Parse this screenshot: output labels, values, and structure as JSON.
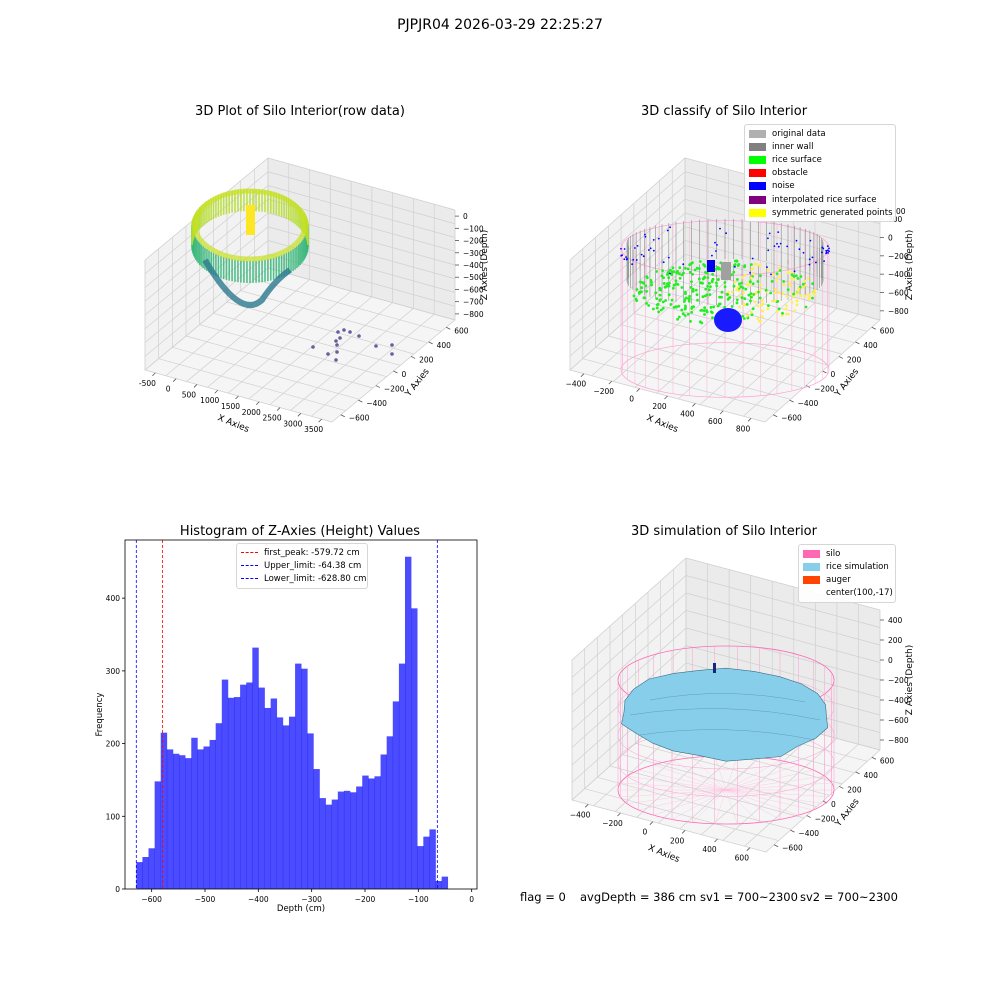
{
  "suptitle": "PJPJR04 2026-03-29 22:25:27",
  "plots": {
    "raw": {
      "title": "3D Plot of Silo Interior(row data)",
      "xlabel": "X Axies",
      "ylabel": "Y Axies",
      "zlabel": "Z Axies (Depth)",
      "xticks": [
        "-500",
        "0",
        "500",
        "1000",
        "1500",
        "2000",
        "2500",
        "3000",
        "3500"
      ],
      "yticks": [
        "600",
        "400",
        "200",
        "0",
        "−200",
        "−400",
        "−600"
      ],
      "zticks": [
        "0",
        "−100",
        "−200",
        "−300",
        "−400",
        "−500",
        "−600",
        "−700",
        "−800"
      ]
    },
    "classify": {
      "title": "3D classify of Silo Interior",
      "xlabel": "X Axies",
      "ylabel": "Y Axies",
      "zlabel": "Z Axies (Depth)",
      "xticks": [
        "−400",
        "−200",
        "0",
        "200",
        "400",
        "600",
        "800"
      ],
      "yticks": [
        "600",
        "400",
        "200",
        "0",
        "−200",
        "−400",
        "−600"
      ],
      "zticks": [
        "200",
        "0",
        "−200",
        "−400",
        "−600",
        "−800"
      ],
      "legend": [
        {
          "label": "original data",
          "color": "#b0b0b0"
        },
        {
          "label": "inner wall",
          "color": "#808080"
        },
        {
          "label": "rice surface",
          "color": "#00ff00"
        },
        {
          "label": "obstacle",
          "color": "#ff0000"
        },
        {
          "label": "noise",
          "color": "#0000ff"
        },
        {
          "label": "interpolated rice surface",
          "color": "#800080"
        },
        {
          "label": "symmetric generated points",
          "color": "#ffff00"
        }
      ],
      "ztick_fragment": "00"
    },
    "histogram": {
      "title": "Histogram of Z-Axies (Height) Values",
      "xlabel": "Depth (cm)",
      "ylabel": "Frequency",
      "legend": [
        {
          "label": "first_peak: -579.72 cm",
          "color": "#ff0000"
        },
        {
          "label": "Upper_limit: -64.38 cm",
          "color": "#0000ff"
        },
        {
          "label": "Lower_limit: -628.80 cm",
          "color": "#0000ff"
        }
      ]
    },
    "simulation": {
      "title": "3D simulation of Silo Interior",
      "xlabel": "X Axies",
      "ylabel": "Y Axies",
      "zlabel": "Z Axies (Depth)",
      "xticks": [
        "−400",
        "−200",
        "0",
        "200",
        "400",
        "600"
      ],
      "yticks": [
        "600",
        "400",
        "200",
        "0",
        "−200",
        "−400",
        "−600"
      ],
      "zticks": [
        "400",
        "200",
        "0",
        "−200",
        "−400",
        "−600",
        "−800"
      ],
      "legend": [
        {
          "label": "silo",
          "color": "#ff69b4"
        },
        {
          "label": "rice simulation",
          "color": "#87ceeb"
        },
        {
          "label": "auger",
          "color": "#ff4500"
        },
        {
          "label": "center(100,-17)",
          "color": ""
        }
      ]
    }
  },
  "footer": {
    "flag": "flag = 0",
    "avg": "avgDepth = 386 cm",
    "sv1": "sv1 = 700~2300",
    "sv2": "sv2 = 700~2300"
  },
  "chart_data": {
    "type": "bar",
    "title": "Histogram of Z-Axies (Height) Values",
    "xlabel": "Depth (cm)",
    "ylabel": "Frequency",
    "xlim": [
      -650,
      10
    ],
    "ylim": [
      0,
      480
    ],
    "xticks": [
      -600,
      -500,
      -400,
      -300,
      -200,
      -100,
      0
    ],
    "yticks": [
      0,
      100,
      200,
      300,
      400
    ],
    "bin_start": -628.8,
    "bin_width": 11.45,
    "values": [
      37,
      44,
      56,
      148,
      215,
      192,
      186,
      184,
      180,
      208,
      192,
      196,
      205,
      228,
      288,
      263,
      264,
      281,
      284,
      332,
      277,
      249,
      262,
      236,
      225,
      237,
      310,
      303,
      214,
      165,
      125,
      116,
      123,
      134,
      135,
      133,
      141,
      156,
      152,
      155,
      185,
      210,
      258,
      310,
      457,
      386,
      59,
      72,
      82,
      11,
      17
    ],
    "color": "#0000ff",
    "vlines": [
      {
        "name": "first_peak: -579.72 cm",
        "x": -579.72,
        "color": "#ff0000"
      },
      {
        "name": "Upper_limit: -64.38 cm",
        "x": -64.38,
        "color": "#0000ff"
      },
      {
        "name": "Lower_limit: -628.80 cm",
        "x": -628.8,
        "color": "#0000ff"
      }
    ]
  }
}
